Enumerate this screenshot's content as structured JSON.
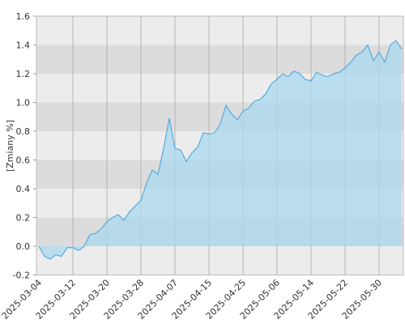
{
  "chart_data": {
    "type": "area",
    "y_label": "[Zmiany %]",
    "categories": [
      "2025-03-04",
      null,
      null,
      null,
      null,
      null,
      "2025-03-12",
      null,
      null,
      null,
      null,
      null,
      "2025-03-20",
      null,
      null,
      null,
      null,
      null,
      "2025-03-28",
      null,
      null,
      null,
      null,
      null,
      "2025-04-07",
      null,
      null,
      null,
      null,
      null,
      "2025-04-15",
      null,
      null,
      null,
      null,
      null,
      "2025-04-25",
      null,
      null,
      null,
      null,
      null,
      "2025-05-06",
      null,
      null,
      null,
      null,
      null,
      "2025-05-14",
      null,
      null,
      null,
      null,
      null,
      "2025-05-22",
      null,
      null,
      null,
      null,
      null,
      "2025-05-30",
      null,
      null,
      null,
      null
    ],
    "values": [
      0.0,
      -0.07,
      -0.09,
      -0.06,
      -0.07,
      -0.01,
      -0.01,
      -0.03,
      0.0,
      0.08,
      0.09,
      0.12,
      0.17,
      0.2,
      0.22,
      0.18,
      0.24,
      0.28,
      0.32,
      0.44,
      0.53,
      0.5,
      0.68,
      0.89,
      0.68,
      0.67,
      0.59,
      0.65,
      0.69,
      0.79,
      0.78,
      0.79,
      0.85,
      0.98,
      0.92,
      0.88,
      0.94,
      0.96,
      1.01,
      1.02,
      1.06,
      1.13,
      1.16,
      1.2,
      1.18,
      1.22,
      1.2,
      1.16,
      1.15,
      1.21,
      1.19,
      1.18,
      1.2,
      1.21,
      1.24,
      1.28,
      1.33,
      1.35,
      1.4,
      1.29,
      1.35,
      1.28,
      1.4,
      1.43,
      1.37
    ],
    "color": "#5aa9dc",
    "fill": "#a9d9ef",
    "ylim": [
      -0.2,
      1.6
    ],
    "yticks": [
      -0.2,
      {
        "value": 0,
        "label": "0.0"
      },
      0.2,
      0.4,
      0.6,
      0.8,
      {
        "value": 1,
        "label": "1.0"
      },
      1.2,
      1.4,
      1.6
    ],
    "grid": true
  }
}
